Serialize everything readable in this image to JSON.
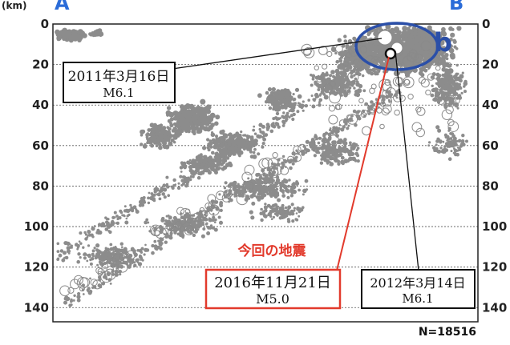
{
  "chart_data": {
    "type": "scatter",
    "unit_label": "(km)",
    "section_start_label": "A",
    "section_end_label": "B",
    "region_label": "b",
    "count_label": "N=18516",
    "y_ticks": [
      "0",
      "20",
      "40",
      "60",
      "80",
      "100",
      "120",
      "140"
    ],
    "y_ticks_right": [
      "0",
      "20",
      "40",
      "60",
      "80",
      "100",
      "120",
      "140"
    ],
    "ylim": [
      0,
      147
    ],
    "grid": true,
    "colors": {
      "hypocenter": "#8c8c8c",
      "line_cur": "#e23a2c",
      "circle_b": "#2b4fa8",
      "label_a": "#2b6cd8"
    },
    "annotations": [
      {
        "id": "eq2011",
        "lines": [
          "2011年3月16日",
          "M6.1"
        ]
      },
      {
        "id": "eq2016",
        "caption": "今回の地震",
        "lines": [
          "2016年11月21日",
          "M5.0"
        ]
      },
      {
        "id": "eq2012",
        "lines": [
          "2012年3月14日",
          "M6.1"
        ]
      }
    ],
    "highlighted_events": [
      {
        "date": "2011年3月16日",
        "magnitude": "M6.1",
        "depth_km": 15
      },
      {
        "date": "2016年11月21日",
        "magnitude": "M5.0",
        "depth_km": 18
      },
      {
        "date": "2012年3月14日",
        "magnitude": "M6.1",
        "depth_km": 16
      }
    ]
  }
}
